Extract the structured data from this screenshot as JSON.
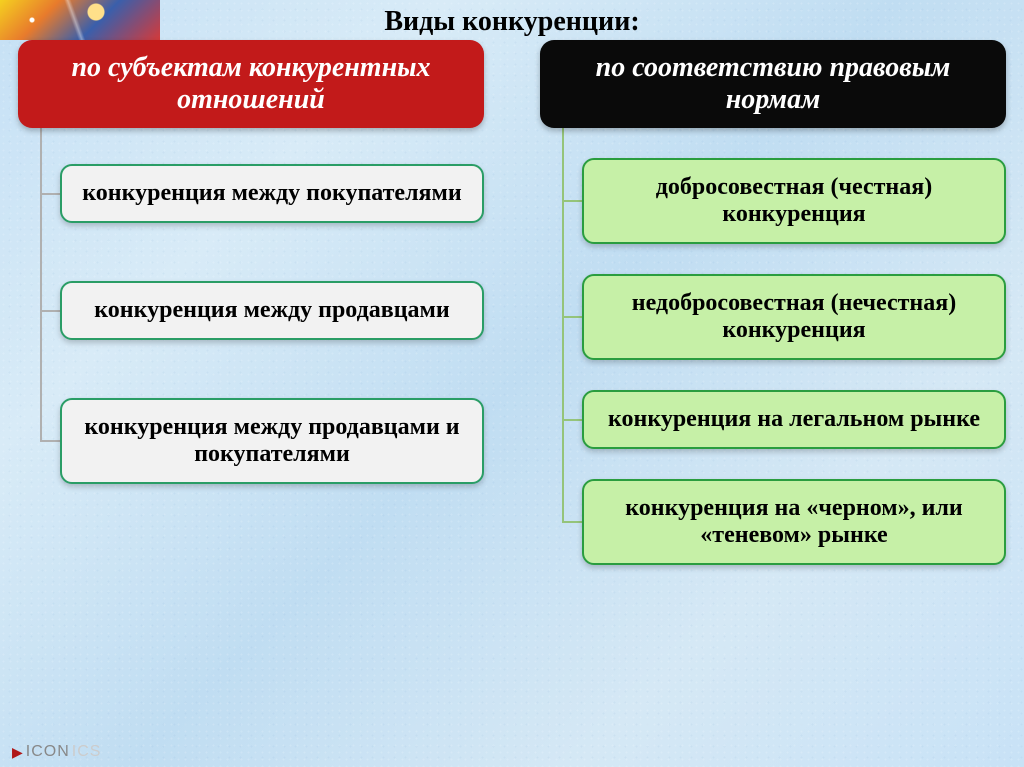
{
  "title": {
    "text": "Виды конкуренции:",
    "fontsize": 28,
    "color": "#000000"
  },
  "background": {
    "base": "#cde5f5"
  },
  "columns": [
    {
      "header": {
        "text": "по субъектам конкурентных отношений",
        "bg": "#c21a1a",
        "text_color": "#ffffff",
        "fontsize": 28
      },
      "item_style": {
        "bg": "#f2f2f2",
        "border": "#2a9d66",
        "text_color": "#000000",
        "fontsize": 24
      },
      "connector_color": "#b0b0b0",
      "gap": 58,
      "top_gap": 36,
      "items": [
        "конкуренция между покупателями",
        "конкуренция между продавцами",
        "конкуренция между продавцами и покупателями"
      ]
    },
    {
      "header": {
        "text": "по соответствию правовым нормам",
        "bg": "#0a0a0a",
        "text_color": "#ffffff",
        "fontsize": 28
      },
      "item_style": {
        "bg": "#c6f0a7",
        "border": "#2a9d3f",
        "text_color": "#000000",
        "fontsize": 24
      },
      "connector_color": "#95c47a",
      "gap": 30,
      "top_gap": 30,
      "items": [
        "добросовестная (честная) конкуренция",
        "недобросовестная (нечестная) конкуренция",
        "конкуренция на легальном рынке",
        "конкуренция на «черном», или «теневом» рынке"
      ]
    }
  ],
  "footer": {
    "brand_left": "ICON",
    "brand_right": "ICS"
  }
}
